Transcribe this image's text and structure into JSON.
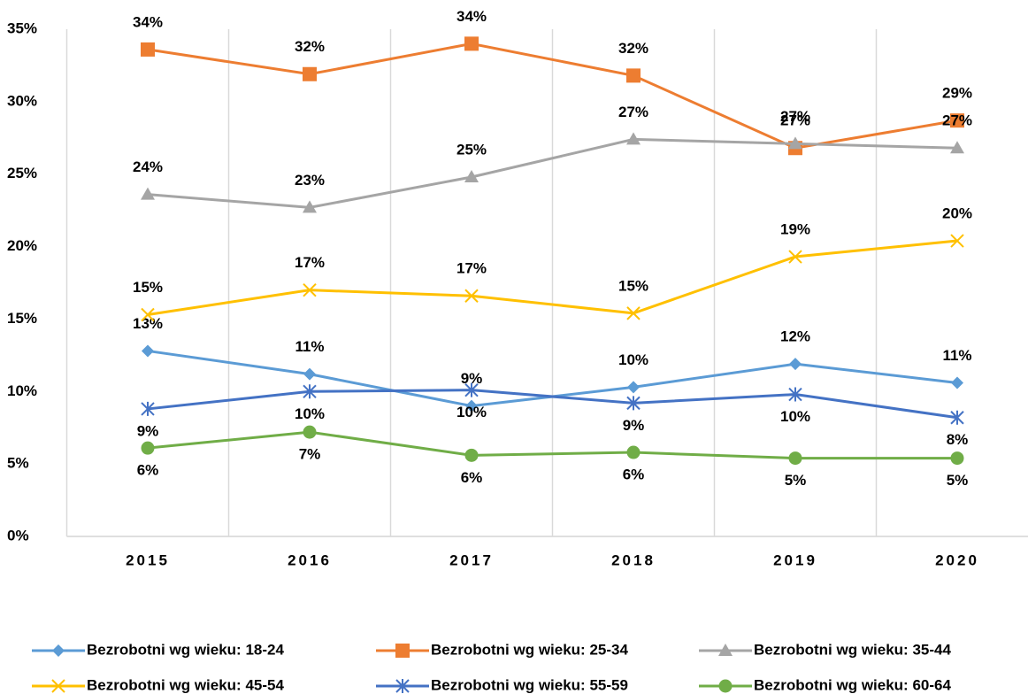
{
  "chart_data": {
    "type": "line",
    "categories": [
      "2015",
      "2016",
      "2017",
      "2018",
      "2019",
      "2020"
    ],
    "ylim": [
      0,
      35
    ],
    "yticks": [
      {
        "value": 0,
        "label": "0%"
      },
      {
        "value": 5,
        "label": "5%"
      },
      {
        "value": 10,
        "label": "10%"
      },
      {
        "value": 15,
        "label": "15%"
      },
      {
        "value": 20,
        "label": "20%"
      },
      {
        "value": 25,
        "label": "25%"
      },
      {
        "value": 30,
        "label": "30%"
      },
      {
        "value": 35,
        "label": "35%"
      }
    ],
    "grid": true,
    "legend": "bottom",
    "series": [
      {
        "name": "Bezrobotni wg wieku: 18-24",
        "color": "#5b9bd5",
        "marker": "diamond",
        "values": [
          12.8,
          11.2,
          9.0,
          10.3,
          11.9,
          10.6
        ],
        "value_labels": [
          "13%",
          "11%",
          "9%",
          "10%",
          "12%",
          "11%"
        ]
      },
      {
        "name": "Bezrobotni wg wieku: 25-34",
        "color": "#ed7d31",
        "marker": "square",
        "values": [
          33.6,
          31.9,
          34.0,
          31.8,
          26.8,
          28.7
        ],
        "value_labels": [
          "34%",
          "32%",
          "34%",
          "32%",
          "27%",
          "29%"
        ]
      },
      {
        "name": "Bezrobotni wg wieku: 35-44",
        "color": "#a5a5a5",
        "marker": "triangle",
        "values": [
          23.6,
          22.7,
          24.8,
          27.4,
          27.1,
          26.8
        ],
        "value_labels": [
          "24%",
          "23%",
          "25%",
          "27%",
          "27%",
          "27%"
        ]
      },
      {
        "name": "Bezrobotni wg wieku: 45-54",
        "color": "#ffc000",
        "marker": "x",
        "values": [
          15.3,
          17.0,
          16.6,
          15.4,
          19.3,
          20.4
        ],
        "value_labels": [
          "15%",
          "17%",
          "17%",
          "15%",
          "19%",
          "20%"
        ]
      },
      {
        "name": "Bezrobotni wg wieku: 55-59",
        "color": "#4472c4",
        "marker": "star",
        "values": [
          8.8,
          10.0,
          10.1,
          9.2,
          9.8,
          8.2
        ],
        "value_labels": [
          "9%",
          "10%",
          "10%",
          "9%",
          "10%",
          "8%"
        ]
      },
      {
        "name": "Bezrobotni wg wieku: 60-64",
        "color": "#70ad47",
        "marker": "circle",
        "values": [
          6.1,
          7.2,
          5.6,
          5.8,
          5.4,
          5.4
        ],
        "value_labels": [
          "6%",
          "7%",
          "6%",
          "6%",
          "5%",
          "5%"
        ]
      }
    ]
  }
}
